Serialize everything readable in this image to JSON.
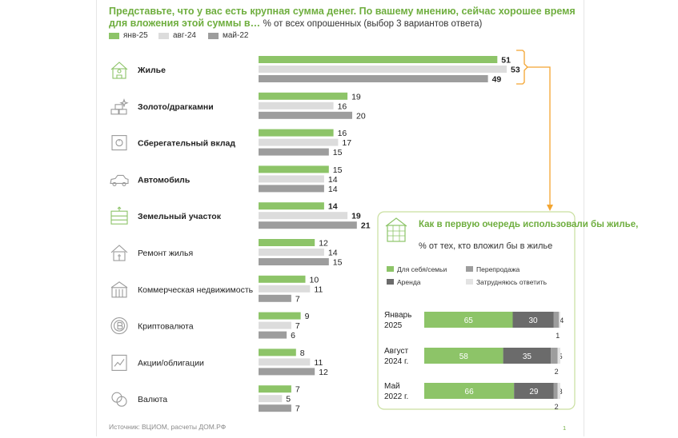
{
  "title": {
    "main": "Представьте, что у вас есть крупная сумма денег. По вашему мнению, сейчас хорошее время для вложения этой суммы в…",
    "sub": "% от всех опрошенных (выбор 3 вариантов ответа)"
  },
  "colors": {
    "green": "#8dc468",
    "light_gray": "#dcdcdc",
    "dark_gray": "#9d9d9d",
    "darker_gray": "#6b6b6b",
    "pale_gray": "#e3e3e3",
    "accent": "#6fae3f",
    "orange": "#f3a531"
  },
  "legend": [
    {
      "label": "янв-25",
      "color": "#8dc468"
    },
    {
      "label": "авг-24",
      "color": "#dcdcdc"
    },
    {
      "label": "май-22",
      "color": "#9d9d9d"
    }
  ],
  "chart_data": [
    {
      "type": "bar",
      "orientation": "horizontal",
      "categories": [
        "Жилье",
        "Золото/драгкамни",
        "Сберегательный вклад",
        "Автомобиль",
        "Земельный участок",
        "Ремонт жилья",
        "Коммерческая недвижимость",
        "Криптовалюта",
        "Акции/облигации",
        "Валюта"
      ],
      "bold_categories": [
        "Жилье",
        "Золото/драгкамни",
        "Сберегательный вклад",
        "Автомобиль",
        "Земельный участок"
      ],
      "category_icons": [
        "house-person-icon",
        "gold-bars-icon",
        "safe-icon",
        "car-icon",
        "land-plot-icon",
        "house-repair-icon",
        "commercial-building-icon",
        "crypto-coin-icon",
        "stock-chart-icon",
        "coins-icon"
      ],
      "series": [
        {
          "name": "янв-25",
          "values": [
            51,
            19,
            16,
            15,
            14,
            12,
            10,
            9,
            8,
            7
          ]
        },
        {
          "name": "авг-24",
          "values": [
            53,
            16,
            17,
            14,
            19,
            14,
            11,
            7,
            11,
            5
          ]
        },
        {
          "name": "май-22",
          "values": [
            49,
            20,
            15,
            14,
            21,
            15,
            7,
            6,
            12,
            7
          ]
        }
      ],
      "bold_labels": {
        "Жилье": [
          true,
          true,
          true
        ],
        "Земельный участок": [
          true,
          true,
          true
        ]
      },
      "xlim": [
        0,
        55
      ]
    },
    {
      "type": "bar",
      "orientation": "horizontal",
      "stacked": true,
      "title": "Как в первую очередь использовали бы жилье,",
      "subtitle": "% от тех, кто вложил бы в жилье",
      "categories": [
        "Январь 2025",
        "Август 2024 г.",
        "Май 2022 г."
      ],
      "series": [
        {
          "name": "Для себя/семьи",
          "values": [
            65,
            58,
            66
          ]
        },
        {
          "name": "Аренда",
          "values": [
            30,
            35,
            29
          ]
        },
        {
          "name": "Перепродажа",
          "values": [
            4,
            5,
            3
          ]
        },
        {
          "name": "Затрудняюсь ответить",
          "values": [
            1,
            2,
            2
          ]
        }
      ],
      "xlim": [
        0,
        100
      ]
    }
  ],
  "inset": {
    "category_lines": [
      [
        "Январь",
        "2025"
      ],
      [
        "Август",
        "2024 г."
      ],
      [
        "Май",
        "2022 г."
      ]
    ],
    "legend": [
      {
        "label": "Для себя/семьи",
        "color": "#8dc468"
      },
      {
        "label": "Перепродажа",
        "color": "#9d9d9d"
      },
      {
        "label": "Аренда",
        "color": "#6b6b6b"
      },
      {
        "label": "Затрудняюсь ответить",
        "color": "#e3e3e3"
      }
    ],
    "icon": "house-plan-icon"
  },
  "source": "Источник: ВЦИОМ, расчеты ДОМ.РФ",
  "page_number": "1"
}
